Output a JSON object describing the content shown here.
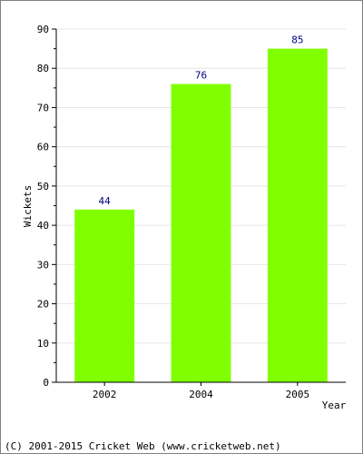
{
  "chart_data": {
    "type": "bar",
    "categories": [
      "2002",
      "2004",
      "2005"
    ],
    "values": [
      44,
      76,
      85
    ],
    "data_labels": [
      "44",
      "76",
      "85"
    ],
    "title": "",
    "xlabel": "Year",
    "ylabel": "Wickets",
    "ylim": [
      0,
      90
    ],
    "y_major_ticks": [
      "0",
      "10",
      "20",
      "30",
      "40",
      "50",
      "60",
      "70",
      "80",
      "90"
    ],
    "y_minor_step": 5,
    "grid": "horizontal",
    "bar_color": "#80ff00",
    "grid_color": "#e6e6e6",
    "data_label_color": "#000080"
  },
  "footer": {
    "copyright": "(C) 2001-2015 Cricket Web (www.cricketweb.net)"
  }
}
